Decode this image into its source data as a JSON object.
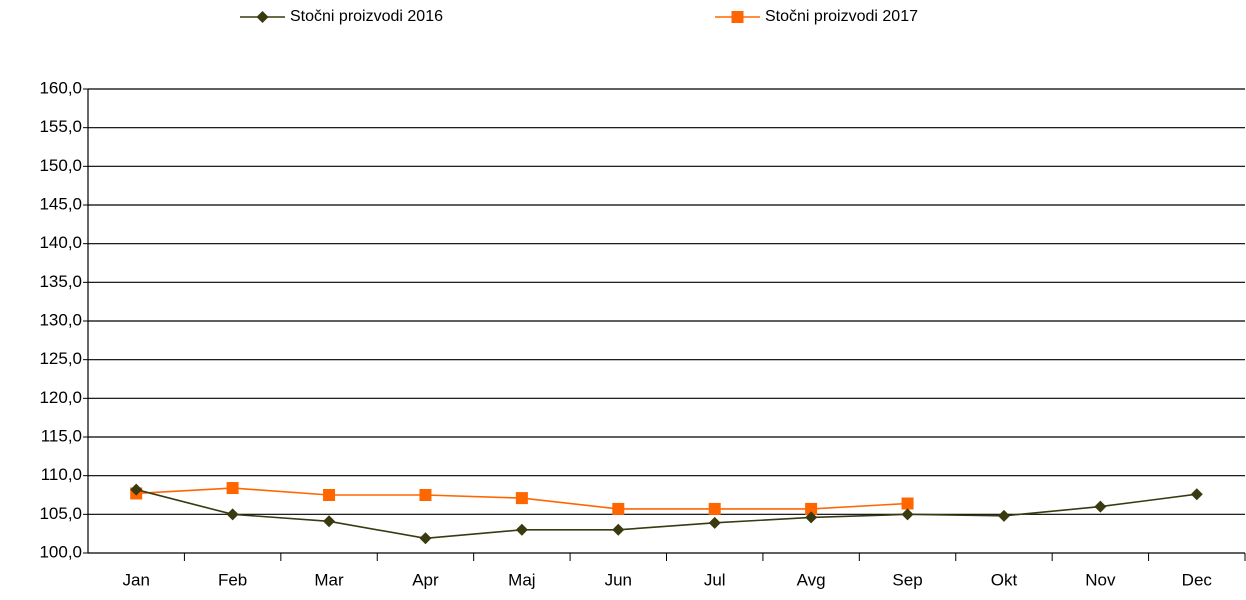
{
  "chart_data": {
    "type": "line",
    "categories": [
      "Jan",
      "Feb",
      "Mar",
      "Apr",
      "Maj",
      "Jun",
      "Jul",
      "Avg",
      "Sep",
      "Okt",
      "Nov",
      "Dec"
    ],
    "series": [
      {
        "name": "Stočni proizvodi  2016",
        "color": "#3a3a10",
        "marker": "diamond",
        "values": [
          108.2,
          105.0,
          104.1,
          101.9,
          103.0,
          103.0,
          103.9,
          104.6,
          105.0,
          104.8,
          106.0,
          107.6
        ]
      },
      {
        "name": "Stočni proizvodi  2017",
        "color": "#ff6600",
        "marker": "square",
        "values": [
          107.7,
          108.4,
          107.5,
          107.5,
          107.1,
          105.7,
          105.7,
          105.7,
          106.4,
          null,
          null,
          null
        ]
      }
    ],
    "ylim": [
      100,
      160
    ],
    "yticks": [
      {
        "value": 100,
        "label": "100,0"
      },
      {
        "value": 105,
        "label": "105,0"
      },
      {
        "value": 110,
        "label": "110,0"
      },
      {
        "value": 115,
        "label": "115,0"
      },
      {
        "value": 120,
        "label": "120,0"
      },
      {
        "value": 125,
        "label": "125,0"
      },
      {
        "value": 130,
        "label": "130,0"
      },
      {
        "value": 135,
        "label": "135,0"
      },
      {
        "value": 140,
        "label": "140,0"
      },
      {
        "value": 145,
        "label": "145,0"
      },
      {
        "value": 150,
        "label": "150,0"
      },
      {
        "value": 155,
        "label": "155,0"
      },
      {
        "value": 160,
        "label": "160,0"
      }
    ],
    "grid": true,
    "legend": "top"
  }
}
